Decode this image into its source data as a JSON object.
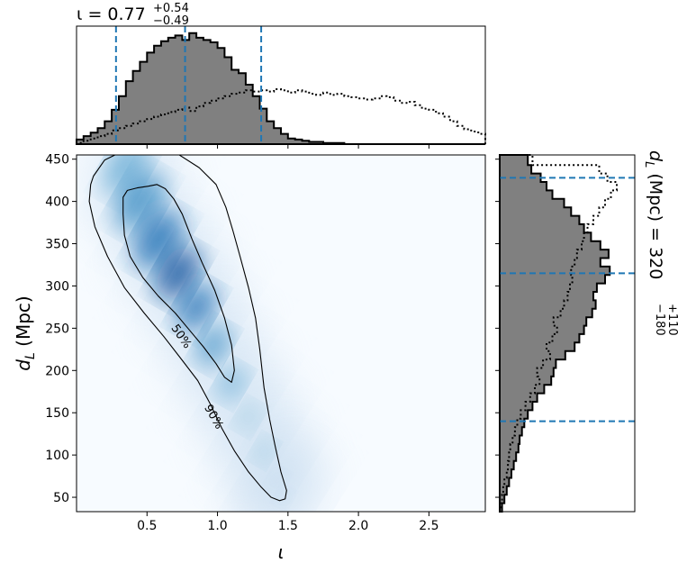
{
  "chart_data": [
    {
      "type": "heatmap",
      "panel": "joint",
      "xlabel": "ι",
      "ylabel_main": "d",
      "ylabel_sub": "L",
      "ylabel_unit": " (Mpc)",
      "xlim": [
        0.0,
        2.9
      ],
      "ylim": [
        33,
        455
      ],
      "x_ticks": [
        0.5,
        1.0,
        1.5,
        2.0,
        2.5
      ],
      "x_tick_labels": [
        "0.5",
        "1.0",
        "1.5",
        "2.0",
        "2.5"
      ],
      "y_ticks": [
        50,
        100,
        150,
        200,
        250,
        300,
        350,
        400,
        450
      ],
      "y_tick_labels": [
        "50",
        "100",
        "150",
        "200",
        "250",
        "300",
        "350",
        "400",
        "450"
      ],
      "colormap": "Blues",
      "contour_labels": [
        "50%",
        "90%"
      ],
      "contour_label_positions": [
        {
          "text": "50%",
          "x": 0.74,
          "y": 240,
          "angle": 55
        },
        {
          "text": "90%",
          "x": 0.97,
          "y": 145,
          "angle": 60
        }
      ],
      "density_ridge": [
        {
          "x": 0.35,
          "y": 440
        },
        {
          "x": 0.45,
          "y": 400
        },
        {
          "x": 0.58,
          "y": 355
        },
        {
          "x": 0.72,
          "y": 315
        },
        {
          "x": 0.85,
          "y": 275
        },
        {
          "x": 0.97,
          "y": 230
        },
        {
          "x": 1.1,
          "y": 185
        },
        {
          "x": 1.22,
          "y": 145
        },
        {
          "x": 1.33,
          "y": 105
        },
        {
          "x": 1.42,
          "y": 70
        },
        {
          "x": 1.47,
          "y": 50
        }
      ],
      "contour_50": [
        [
          0.33,
          405
        ],
        [
          0.36,
          413
        ],
        [
          0.43,
          416
        ],
        [
          0.51,
          418
        ],
        [
          0.57,
          420
        ],
        [
          0.63,
          415
        ],
        [
          0.69,
          403
        ],
        [
          0.75,
          385
        ],
        [
          0.82,
          355
        ],
        [
          0.89,
          328
        ],
        [
          0.98,
          295
        ],
        [
          1.05,
          262
        ],
        [
          1.1,
          230
        ],
        [
          1.12,
          200
        ],
        [
          1.1,
          186
        ],
        [
          1.05,
          192
        ],
        [
          0.99,
          208
        ],
        [
          0.9,
          228
        ],
        [
          0.8,
          248
        ],
        [
          0.7,
          268
        ],
        [
          0.58,
          288
        ],
        [
          0.47,
          310
        ],
        [
          0.38,
          335
        ],
        [
          0.34,
          360
        ],
        [
          0.33,
          385
        ],
        [
          0.33,
          405
        ]
      ],
      "contour_90": [
        [
          0.12,
          430
        ],
        [
          0.2,
          449
        ],
        [
          0.31,
          458
        ],
        [
          0.44,
          460
        ],
        [
          0.58,
          460
        ],
        [
          0.72,
          456
        ],
        [
          0.87,
          440
        ],
        [
          0.99,
          420
        ],
        [
          1.06,
          393
        ],
        [
          1.11,
          365
        ],
        [
          1.16,
          335
        ],
        [
          1.22,
          298
        ],
        [
          1.27,
          262
        ],
        [
          1.3,
          225
        ],
        [
          1.33,
          180
        ],
        [
          1.37,
          142
        ],
        [
          1.41,
          110
        ],
        [
          1.45,
          80
        ],
        [
          1.49,
          58
        ],
        [
          1.48,
          48
        ],
        [
          1.44,
          46
        ],
        [
          1.38,
          50
        ],
        [
          1.31,
          62
        ],
        [
          1.22,
          80
        ],
        [
          1.12,
          105
        ],
        [
          1.03,
          132
        ],
        [
          0.95,
          160
        ],
        [
          0.86,
          188
        ],
        [
          0.75,
          212
        ],
        [
          0.62,
          240
        ],
        [
          0.48,
          268
        ],
        [
          0.34,
          298
        ],
        [
          0.22,
          335
        ],
        [
          0.13,
          370
        ],
        [
          0.09,
          400
        ],
        [
          0.1,
          420
        ],
        [
          0.12,
          430
        ]
      ]
    },
    {
      "type": "area",
      "panel": "top-marginal",
      "title_prefix": "ι = 0.77",
      "title_sup": "+0.54",
      "title_sub": "−0.49",
      "xlim": [
        0.0,
        2.9
      ],
      "bin_edges": [
        0.0,
        0.05,
        0.1,
        0.15,
        0.2,
        0.25,
        0.3,
        0.35,
        0.4,
        0.45,
        0.5,
        0.55,
        0.6,
        0.65,
        0.7,
        0.75,
        0.8,
        0.85,
        0.9,
        0.95,
        1.0,
        1.05,
        1.1,
        1.15,
        1.2,
        1.25,
        1.3,
        1.35,
        1.4,
        1.45,
        1.5,
        1.55,
        1.6,
        1.65,
        1.7,
        1.75,
        1.8,
        1.85,
        1.9,
        1.95,
        2.0,
        2.05,
        2.1,
        2.15,
        2.2,
        2.25,
        2.3,
        2.35,
        2.4,
        2.45,
        2.5,
        2.55,
        2.6,
        2.65,
        2.7,
        2.75,
        2.8,
        2.85,
        2.9
      ],
      "series": [
        {
          "style": "filled-step",
          "fill": "#808080",
          "values": [
            0.04,
            0.07,
            0.1,
            0.14,
            0.2,
            0.3,
            0.42,
            0.55,
            0.64,
            0.72,
            0.8,
            0.86,
            0.9,
            0.93,
            0.95,
            0.91,
            0.97,
            0.93,
            0.91,
            0.89,
            0.84,
            0.76,
            0.65,
            0.62,
            0.52,
            0.42,
            0.31,
            0.2,
            0.14,
            0.09,
            0.05,
            0.04,
            0.03,
            0.02,
            0.02,
            0.01,
            0.01,
            0.01,
            0.0,
            0.0,
            0.0,
            0.0,
            0.0,
            0.0,
            0.0,
            0.0,
            0.0,
            0.0,
            0.0,
            0.0,
            0.0,
            0.0,
            0.0,
            0.0,
            0.0,
            0.0,
            0.0,
            0.0
          ]
        },
        {
          "style": "dotted-step",
          "values": [
            0.01,
            0.03,
            0.05,
            0.07,
            0.09,
            0.12,
            0.14,
            0.16,
            0.18,
            0.2,
            0.22,
            0.24,
            0.26,
            0.28,
            0.3,
            0.32,
            0.29,
            0.33,
            0.36,
            0.38,
            0.4,
            0.42,
            0.44,
            0.45,
            0.47,
            0.46,
            0.47,
            0.46,
            0.48,
            0.47,
            0.45,
            0.47,
            0.46,
            0.44,
            0.43,
            0.45,
            0.43,
            0.44,
            0.42,
            0.41,
            0.4,
            0.39,
            0.4,
            0.42,
            0.41,
            0.38,
            0.36,
            0.37,
            0.34,
            0.31,
            0.3,
            0.27,
            0.24,
            0.2,
            0.16,
            0.13,
            0.11,
            0.09
          ]
        }
      ],
      "quantile_lines": [
        0.28,
        0.77,
        1.31
      ]
    },
    {
      "type": "area",
      "panel": "right-marginal",
      "title_prefix": "d",
      "title_sub_L": "L",
      "title_middle": " (Mpc) = 320",
      "title_sup": "+110",
      "title_sub": "−180",
      "ylim": [
        33,
        455
      ],
      "bin_edges": [
        33,
        43,
        53,
        63,
        73,
        83,
        93,
        103,
        113,
        123,
        133,
        143,
        153,
        163,
        173,
        183,
        193,
        203,
        213,
        223,
        233,
        243,
        253,
        263,
        273,
        283,
        293,
        303,
        313,
        323,
        333,
        343,
        353,
        363,
        373,
        383,
        393,
        403,
        413,
        423,
        433,
        443,
        455
      ],
      "series": [
        {
          "style": "filled-step",
          "fill": "#808080",
          "values": [
            0.02,
            0.04,
            0.06,
            0.08,
            0.1,
            0.12,
            0.14,
            0.16,
            0.17,
            0.19,
            0.21,
            0.24,
            0.28,
            0.32,
            0.38,
            0.44,
            0.46,
            0.48,
            0.56,
            0.64,
            0.68,
            0.72,
            0.74,
            0.79,
            0.82,
            0.8,
            0.83,
            0.9,
            0.94,
            0.86,
            0.93,
            0.86,
            0.78,
            0.72,
            0.68,
            0.61,
            0.55,
            0.45,
            0.4,
            0.35,
            0.27,
            0.24
          ]
        },
        {
          "style": "dotted-step",
          "values": [
            0.01,
            0.02,
            0.03,
            0.04,
            0.06,
            0.07,
            0.08,
            0.09,
            0.11,
            0.13,
            0.15,
            0.18,
            0.22,
            0.26,
            0.3,
            0.34,
            0.32,
            0.37,
            0.43,
            0.4,
            0.45,
            0.49,
            0.46,
            0.52,
            0.55,
            0.58,
            0.6,
            0.62,
            0.61,
            0.64,
            0.66,
            0.7,
            0.72,
            0.75,
            0.8,
            0.85,
            0.9,
            0.95,
            1.0,
            0.92,
            0.85,
            0.28
          ]
        }
      ],
      "quantile_lines": [
        140,
        315,
        428
      ]
    }
  ]
}
